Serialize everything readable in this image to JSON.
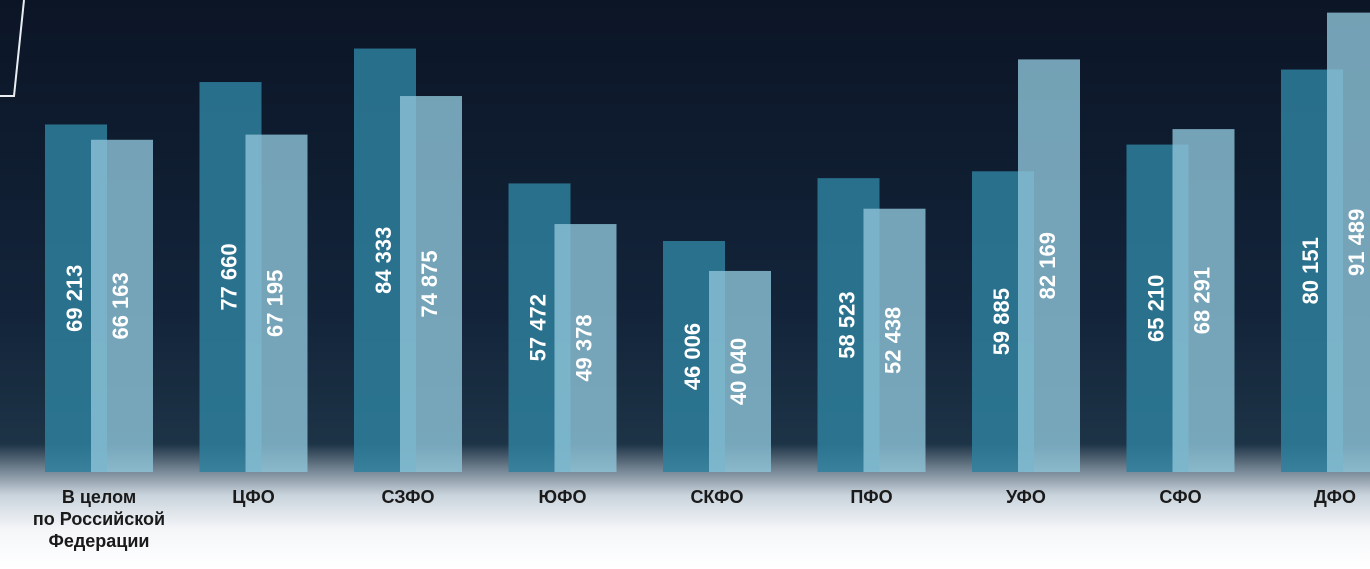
{
  "chart_data": {
    "type": "bar",
    "categories": [
      "В целом\nпо Российской\nФедерации",
      "ЦФО",
      "СЗФО",
      "ЮФО",
      "СКФО",
      "ПФО",
      "УФО",
      "СФО",
      "ДФО"
    ],
    "series": [
      {
        "color": "#2e7f9c",
        "values": [
          69213,
          77660,
          84333,
          57472,
          46006,
          58523,
          59885,
          65210,
          80151
        ],
        "value_labels": [
          "69 213",
          "77 660",
          "84 333",
          "57 472",
          "46 006",
          "58 523",
          "59 885",
          "65 210",
          "80 151"
        ]
      },
      {
        "color": "#8ec4d8",
        "values": [
          66163,
          67195,
          74875,
          49378,
          40040,
          52438,
          82169,
          68291,
          91489
        ],
        "value_labels": [
          "66 163",
          "67 195",
          "74 875",
          "49 378",
          "40 040",
          "52 438",
          "82 169",
          "68 291",
          "91 489"
        ]
      }
    ],
    "ylim": [
      0,
      94000
    ]
  }
}
